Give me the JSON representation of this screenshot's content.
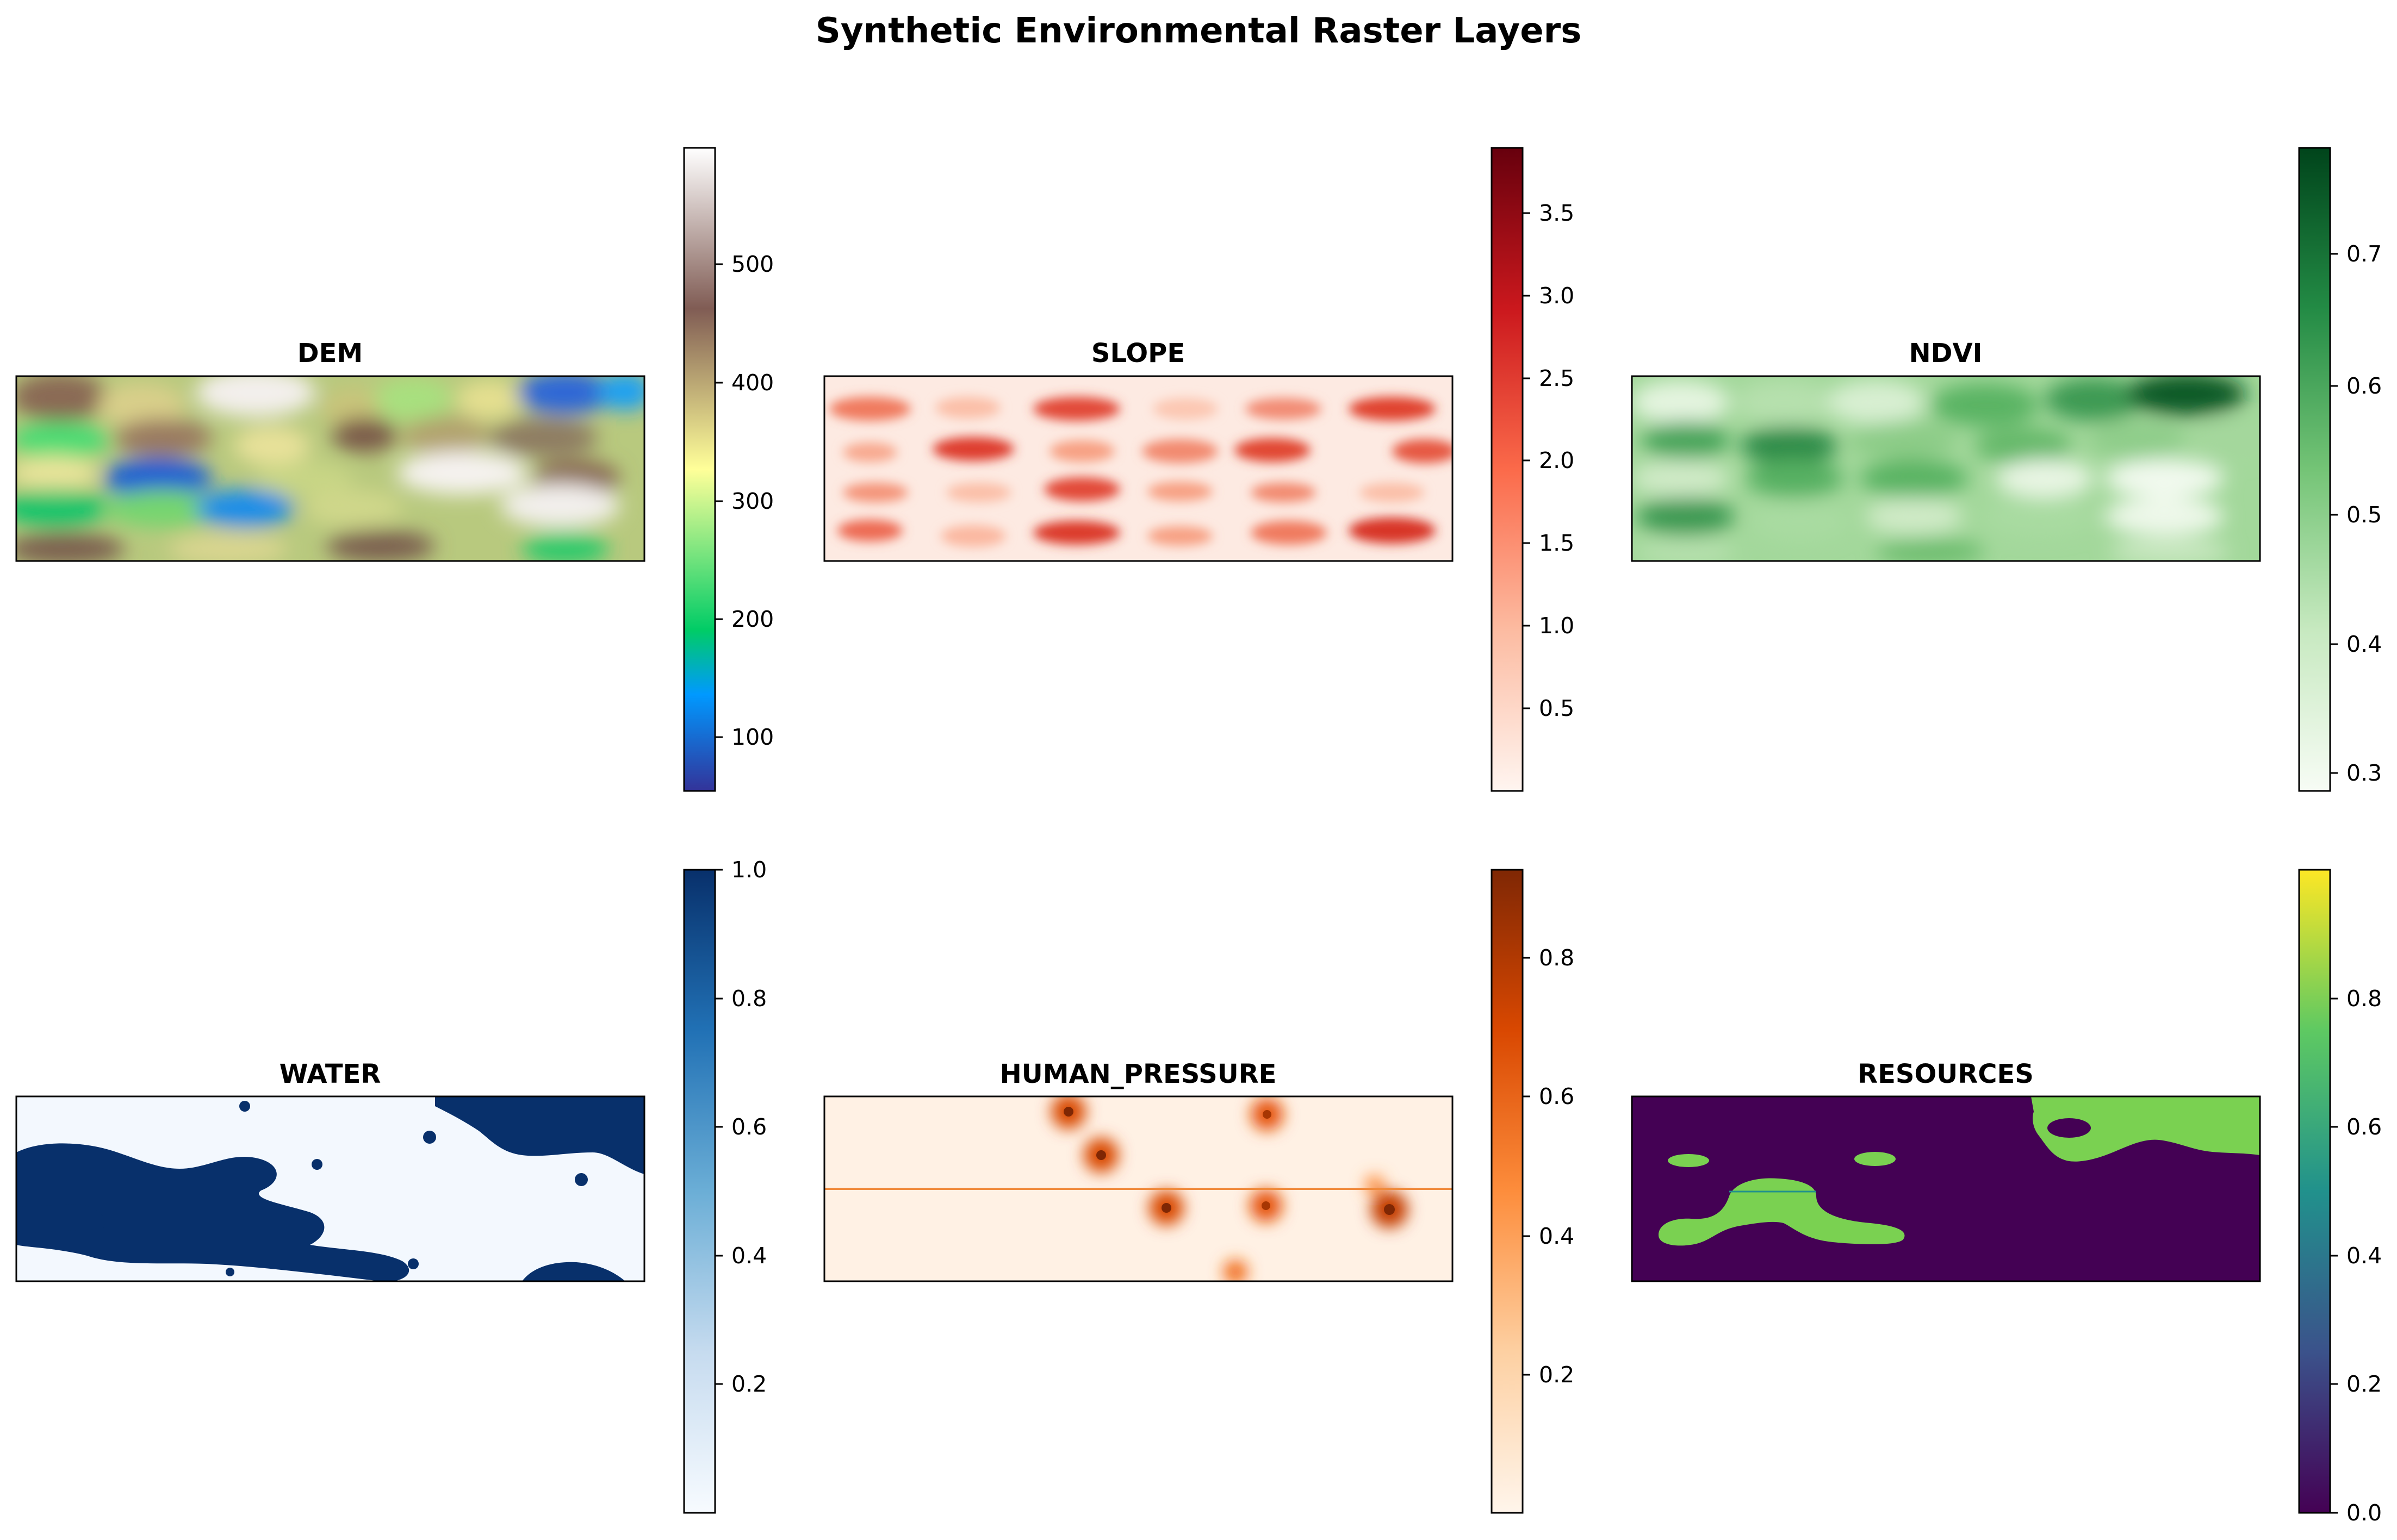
{
  "figure": {
    "title": "Synthetic Environmental Raster Layers"
  },
  "chart_data": [
    {
      "type": "heatmap",
      "title": "DEM",
      "colormap": "terrain",
      "colorbar_range": [
        55,
        600
      ],
      "colorbar_ticks": [
        100,
        200,
        300,
        400,
        500
      ],
      "description_pattern": "smooth elevation blobs"
    },
    {
      "type": "heatmap",
      "title": "SLOPE",
      "colormap": "Reds",
      "colorbar_range": [
        0.0,
        3.9
      ],
      "colorbar_ticks": [
        0.5,
        1.0,
        1.5,
        2.0,
        2.5,
        3.0,
        3.5
      ]
    },
    {
      "type": "heatmap",
      "title": "NDVI",
      "colormap": "Greens",
      "colorbar_range": [
        0.28,
        0.78
      ],
      "colorbar_ticks": [
        0.3,
        0.4,
        0.5,
        0.6,
        0.7
      ]
    },
    {
      "type": "heatmap",
      "title": "WATER",
      "colormap": "Blues",
      "colorbar_range": [
        0.0,
        1.0
      ],
      "colorbar_ticks": [
        0.2,
        0.4,
        0.6,
        0.8,
        1.0
      ]
    },
    {
      "type": "heatmap",
      "title": "HUMAN_PRESSURE",
      "colormap": "Oranges",
      "colorbar_range": [
        0.0,
        0.92
      ],
      "colorbar_ticks": [
        0.2,
        0.4,
        0.6,
        0.8
      ]
    },
    {
      "type": "heatmap",
      "title": "RESOURCES",
      "colormap": "viridis",
      "colorbar_range": [
        0.0,
        1.0
      ],
      "colorbar_ticks": [
        0.0,
        0.2,
        0.4,
        0.6,
        0.8
      ]
    }
  ]
}
